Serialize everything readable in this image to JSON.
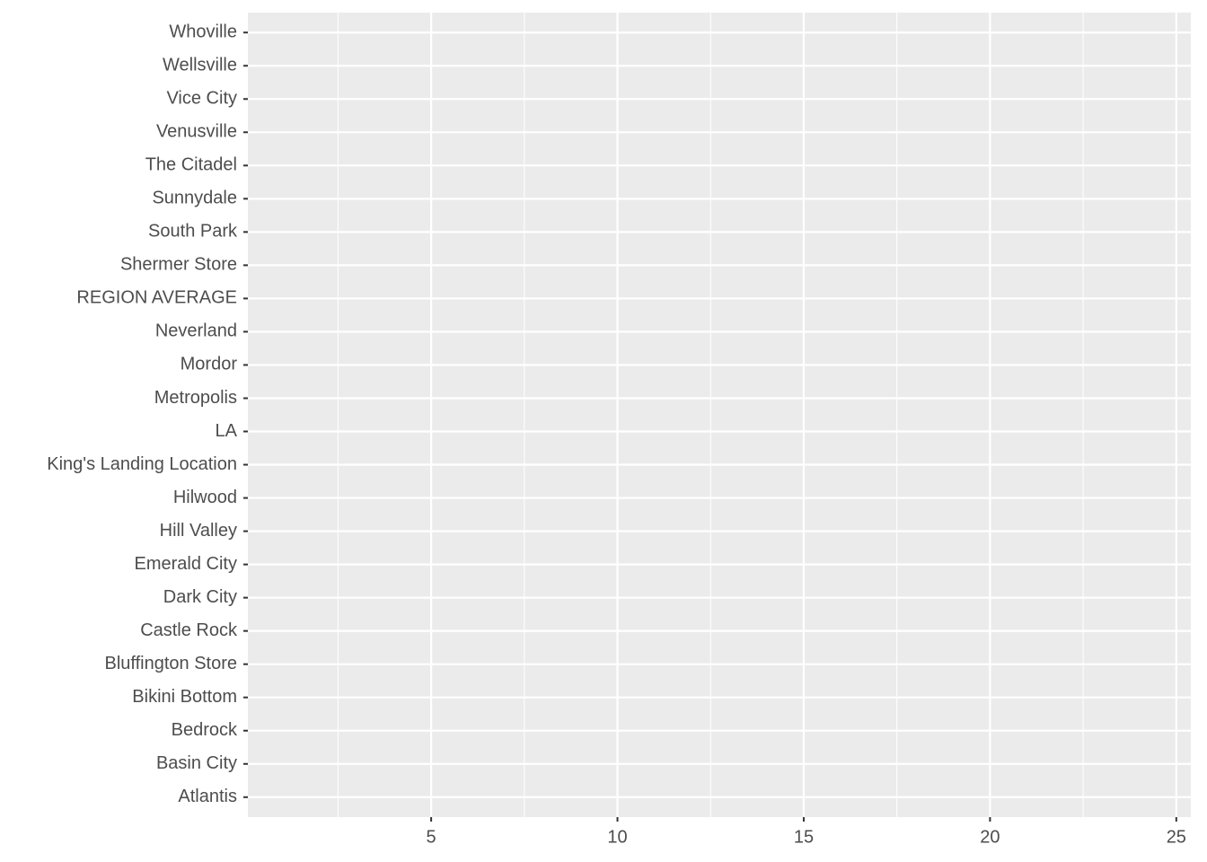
{
  "chart_data": {
    "type": "bar",
    "orientation": "horizontal",
    "categories": [
      "Atlantis",
      "Basin City",
      "Bedrock",
      "Bikini Bottom",
      "Bluffington Store",
      "Castle Rock",
      "Dark City",
      "Emerald City",
      "Hill Valley",
      "Hilwood",
      "King's Landing Location",
      "LA",
      "Metropolis",
      "Mordor",
      "Neverland",
      "REGION AVERAGE",
      "Shermer Store",
      "South Park",
      "Sunnydale",
      "The Citadel",
      "Venusville",
      "Vice City",
      "Wellsville",
      "Whoville"
    ],
    "xlim": [
      0.08,
      25.39
    ],
    "xticks": [
      5,
      10,
      15,
      20,
      25
    ],
    "grid": true
  }
}
